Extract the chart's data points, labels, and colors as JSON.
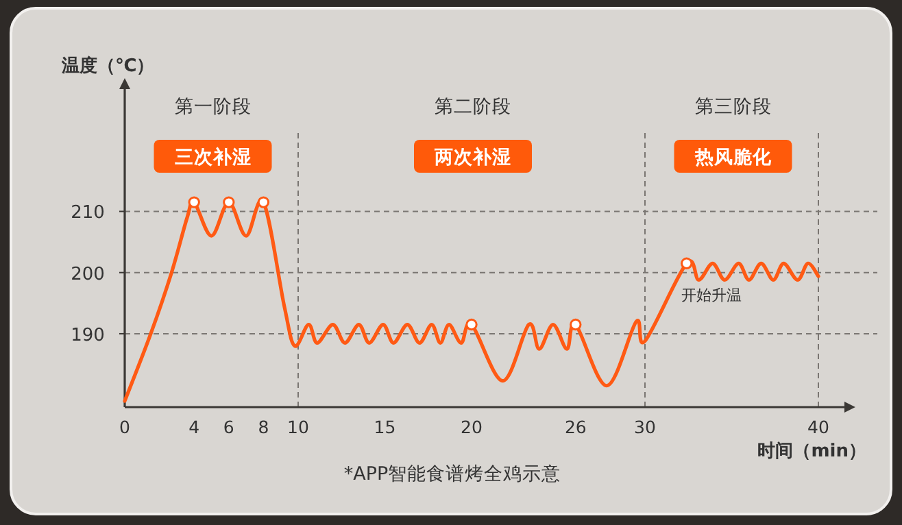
{
  "chart_data": {
    "type": "line",
    "ylabel": "温度（℃）",
    "xlabel": "时间（min）",
    "xlim": [
      0,
      41.5
    ],
    "ylim": [
      178,
      230
    ],
    "xticks": [
      0,
      4,
      6,
      8,
      10,
      15,
      20,
      26,
      30,
      40
    ],
    "yticks": [
      190,
      200,
      210
    ],
    "grid": "y",
    "line_style": "solid",
    "ref_lines": [
      {
        "axis": "x",
        "value": 10,
        "line_style": "dashed"
      },
      {
        "axis": "x",
        "value": 30,
        "line_style": "dashed"
      },
      {
        "axis": "x",
        "value": 40,
        "line_style": "dashed"
      }
    ],
    "annotations": [
      "第一阶段",
      "三次补湿",
      "第二阶段",
      "两次补湿",
      "第三阶段",
      "热风脆化",
      "*APP智能食谱烤全鸡示意",
      {
        "text": "开始升温",
        "x": 32.4,
        "y": 201.5
      }
    ],
    "series": [
      {
        "color": "#ff5a14",
        "marker": "none",
        "x": [
          0,
          1.5,
          2.7,
          3.6,
          4,
          5,
          6,
          7,
          8,
          9.2,
          9.8,
          10.6,
          11.1,
          12.0,
          12.7,
          13.5,
          14.1,
          14.9,
          15.5,
          16.3,
          17.0,
          17.7,
          18.2,
          18.7,
          19.4,
          20,
          21.8,
          23.3,
          23.9,
          24.7,
          25.5,
          26,
          27.8,
          29.5,
          30,
          32.4,
          33.1,
          33.9,
          34.6,
          35.4,
          36.0,
          36.7,
          37.4,
          38.0,
          38.8,
          39.4,
          40
        ],
        "values": [
          179,
          190,
          200,
          209,
          211.5,
          206,
          211.5,
          206,
          211.5,
          194.5,
          188,
          191.5,
          188.5,
          191.5,
          188.5,
          191.5,
          188.5,
          191.5,
          188.5,
          191.5,
          188.5,
          191.5,
          188.5,
          191.5,
          188.5,
          191.5,
          182.3,
          191.5,
          187.5,
          191.5,
          187.5,
          191.5,
          181.5,
          192,
          188.8,
          201.5,
          198.8,
          201.5,
          198.8,
          201.5,
          198.8,
          201.5,
          198.8,
          201.5,
          198.8,
          201.5,
          199.4
        ]
      },
      {
        "type": "scatter",
        "marker": "circle",
        "color": "#ffffff",
        "x": [
          4,
          6,
          8,
          20,
          26,
          32.4
        ],
        "values": [
          211.5,
          211.5,
          211.5,
          191.5,
          191.5,
          201.5
        ]
      }
    ]
  }
}
